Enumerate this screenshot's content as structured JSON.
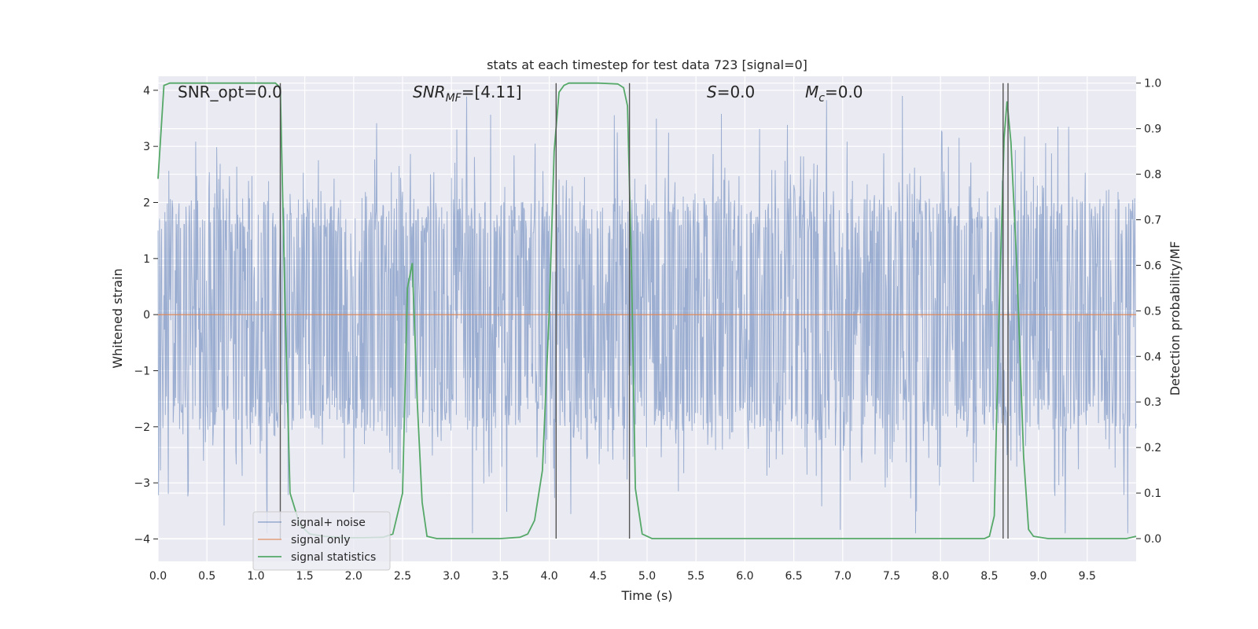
{
  "chart_data": {
    "type": "line",
    "title": "stats at each timestep for test data 723 [signal=0]",
    "xlabel": "Time (s)",
    "ylabel": "Whitened strain",
    "ylabel_right": "Detection probability/MF",
    "xlim": [
      0,
      10
    ],
    "ylim": [
      -4.4,
      4.25
    ],
    "ylim_right": [
      -0.05,
      1.015
    ],
    "x_ticks": [
      "0.0",
      "0.5",
      "1.0",
      "1.5",
      "2.0",
      "2.5",
      "3.0",
      "3.5",
      "4.0",
      "4.5",
      "5.0",
      "5.5",
      "6.0",
      "6.5",
      "7.0",
      "7.5",
      "8.0",
      "8.5",
      "9.0",
      "9.5"
    ],
    "y_ticks": [
      "−4",
      "−3",
      "−2",
      "−1",
      "0",
      "1",
      "2",
      "3",
      "4"
    ],
    "y_ticks_right": [
      "0.0",
      "0.1",
      "0.2",
      "0.3",
      "0.4",
      "0.5",
      "0.6",
      "0.7",
      "0.8",
      "0.9",
      "1.0"
    ],
    "grid": true,
    "legend_position": "lower-left",
    "annotations": [
      {
        "key": "snr_opt",
        "prefix": "SNR_opt=0.0",
        "italic": "",
        "sub": "",
        "suffix": ""
      },
      {
        "key": "snr_mf",
        "prefix": "",
        "italic": "SNR",
        "sub": "MF",
        "suffix": "=[4.11]"
      },
      {
        "key": "s",
        "prefix": "",
        "italic": "S",
        "sub": "",
        "suffix": "=0.0"
      },
      {
        "key": "mc",
        "prefix": "",
        "italic": "M",
        "sub": "c",
        "suffix": "=0.0"
      }
    ],
    "series": [
      {
        "name": "signal+ noise",
        "color": "#4c72b0",
        "axis": "left",
        "style": "noise",
        "envelope_mean_abs": 1.6,
        "envelope_peak": 3.9
      },
      {
        "name": "signal only",
        "color": "#dd8452",
        "axis": "left",
        "x": [
          0,
          10
        ],
        "y": [
          0,
          0
        ]
      },
      {
        "name": "signal statistics",
        "color": "#55a868",
        "axis": "right",
        "x": [
          0,
          0.06,
          0.12,
          1.2,
          1.25,
          1.3,
          1.35,
          1.45,
          1.55,
          1.7,
          1.9,
          2.1,
          2.3,
          2.4,
          2.5,
          2.55,
          2.6,
          2.65,
          2.7,
          2.75,
          2.85,
          3.0,
          3.5,
          3.7,
          3.78,
          3.85,
          3.93,
          4.0,
          4.05,
          4.1,
          4.15,
          4.2,
          4.3,
          4.5,
          4.7,
          4.76,
          4.8,
          4.84,
          4.88,
          4.95,
          5.05,
          6.0,
          7.0,
          8.0,
          8.45,
          8.5,
          8.55,
          8.6,
          8.65,
          8.68,
          8.72,
          8.78,
          8.85,
          8.9,
          8.95,
          9.1,
          9.5,
          9.9,
          10.0
        ],
        "y": [
          0.79,
          0.995,
          1.0,
          1.0,
          0.99,
          0.5,
          0.1,
          0.03,
          0.01,
          0.005,
          0.002,
          0.002,
          0.003,
          0.01,
          0.1,
          0.55,
          0.605,
          0.3,
          0.08,
          0.005,
          0.0,
          0.0,
          0.0,
          0.003,
          0.01,
          0.04,
          0.15,
          0.5,
          0.85,
          0.98,
          0.995,
          1.0,
          1.0,
          1.0,
          0.998,
          0.99,
          0.95,
          0.6,
          0.11,
          0.01,
          0.0,
          0.0,
          0.0,
          0.0,
          0.0,
          0.005,
          0.05,
          0.5,
          0.88,
          0.96,
          0.87,
          0.6,
          0.18,
          0.02,
          0.005,
          0.0,
          0.0,
          0.0,
          0.005
        ]
      }
    ],
    "vertical_markers_x": [
      1.25,
      4.07,
      4.82,
      8.64,
      8.69
    ]
  }
}
